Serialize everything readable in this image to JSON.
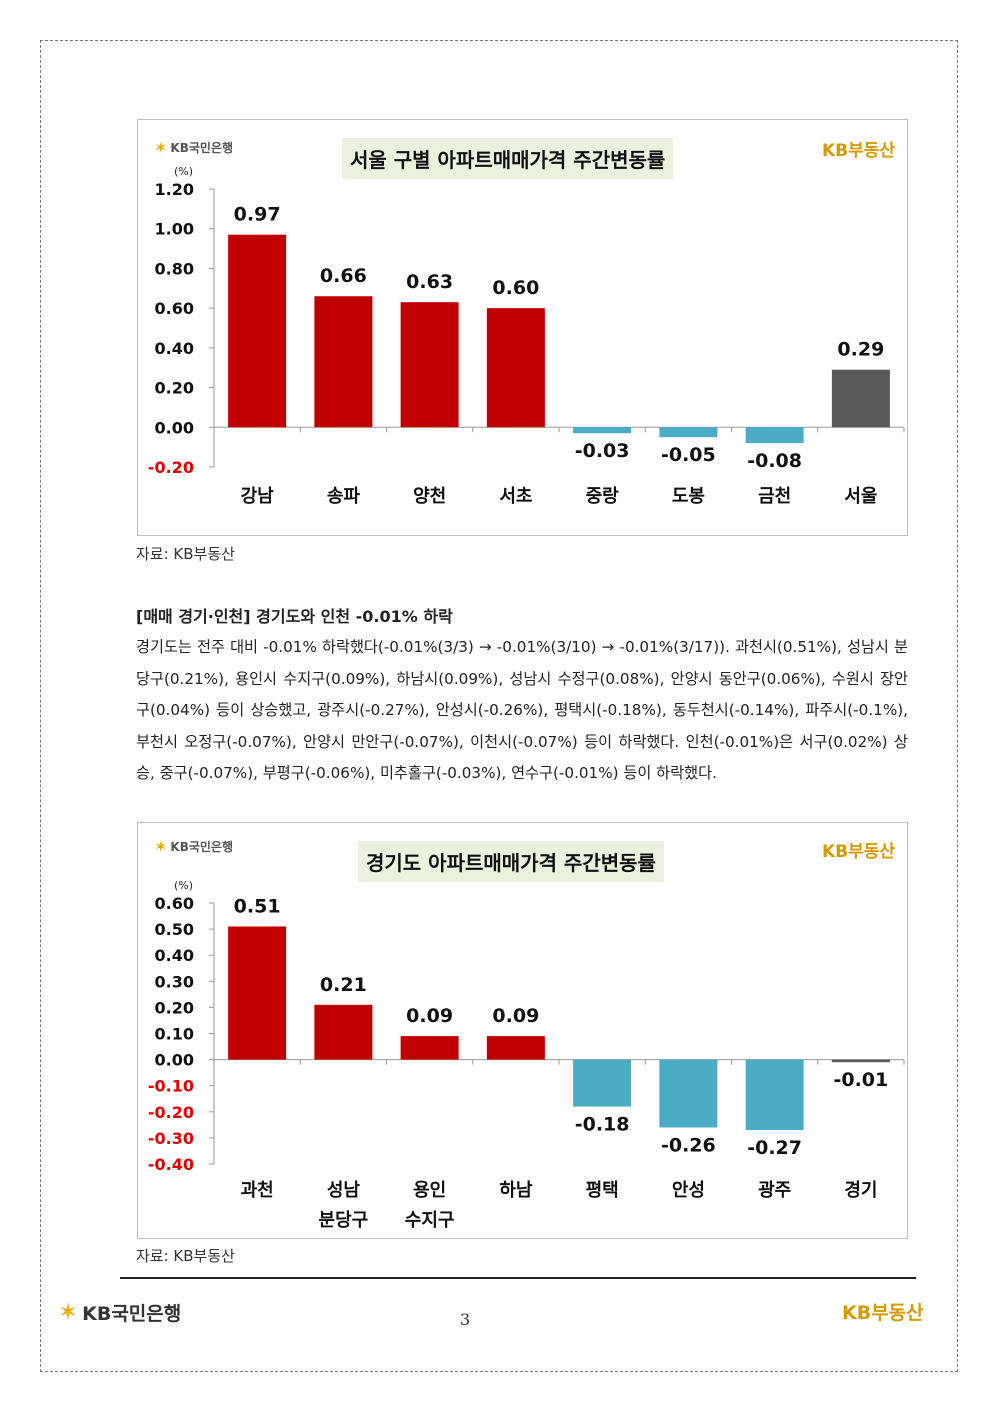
{
  "logos": {
    "kb_bank": "KB국민은행",
    "kb_land": "KB부동산",
    "star_glyph": "✶"
  },
  "charts": [
    {
      "title": "서울 구별 아파트매매가격 주간변동률",
      "unit": "(%)",
      "source": "자료: KB부동산",
      "chart_data": {
        "type": "bar",
        "ylabel": "(%)",
        "ylim": [
          -0.2,
          1.2
        ],
        "yticks": [
          "1.20",
          "1.00",
          "0.80",
          "0.60",
          "0.40",
          "0.20",
          "0.00",
          "-0.20"
        ],
        "categories": [
          "강남",
          "송파",
          "양천",
          "서초",
          "중랑",
          "도봉",
          "금천",
          "서울"
        ],
        "values": [
          0.97,
          0.66,
          0.63,
          0.6,
          -0.03,
          -0.05,
          -0.08,
          0.29
        ],
        "value_labels": [
          "0.97",
          "0.66",
          "0.63",
          "0.60",
          "-0.03",
          "-0.05",
          "-0.08",
          "0.29"
        ],
        "colors": {
          "positive": "#c00000",
          "negative": "#4bacc6",
          "total": "#595959",
          "negative_tick": "#e00000"
        }
      }
    },
    {
      "title": "경기도 아파트매매가격 주간변동률",
      "unit": "(%)",
      "source": "자료: KB부동산",
      "chart_data": {
        "type": "bar",
        "ylabel": "(%)",
        "ylim": [
          -0.4,
          0.6
        ],
        "yticks": [
          "0.60",
          "0.50",
          "0.40",
          "0.30",
          "0.20",
          "0.10",
          "0.00",
          "-0.10",
          "-0.20",
          "-0.30",
          "-0.40"
        ],
        "categories": [
          [
            "과천"
          ],
          [
            "성남",
            "분당구"
          ],
          [
            "용인",
            "수지구"
          ],
          [
            "하남"
          ],
          [
            "평택"
          ],
          [
            "안성"
          ],
          [
            "광주"
          ],
          [
            "경기"
          ]
        ],
        "values": [
          0.51,
          0.21,
          0.09,
          0.09,
          -0.18,
          -0.26,
          -0.27,
          -0.01
        ],
        "value_labels": [
          "0.51",
          "0.21",
          "0.09",
          "0.09",
          "-0.18",
          "-0.26",
          "-0.27",
          "-0.01"
        ],
        "colors": {
          "positive": "#c00000",
          "negative": "#4bacc6",
          "total": "#595959",
          "negative_tick": "#e00000"
        }
      }
    }
  ],
  "section": {
    "heading": "[매매 경기·인천] 경기도와 인천 -0.01% 하락",
    "paragraph": "경기도는 전주 대비 -0.01% 하락했다(-0.01%(3/3) → -0.01%(3/10) → -0.01%(3/17)). 과천시(0.51%), 성남시 분당구(0.21%), 용인시 수지구(0.09%), 하남시(0.09%), 성남시 수정구(0.08%), 안양시 동안구(0.06%), 수원시 장안구(0.04%) 등이 상승했고, 광주시(-0.27%), 안성시(-0.26%), 평택시(-0.18%), 동두천시(-0.14%), 파주시(-0.1%), 부천시 오정구(-0.07%), 안양시 만안구(-0.07%), 이천시(-0.07%) 등이 하락했다. 인천(-0.01%)은 서구(0.02%) 상승, 중구(-0.07%), 부평구(-0.06%), 미추홀구(-0.03%), 연수구(-0.01%) 등이 하락했다."
  },
  "footer": {
    "bank": "KB국민은행",
    "land": "KB부동산",
    "page": "3"
  }
}
